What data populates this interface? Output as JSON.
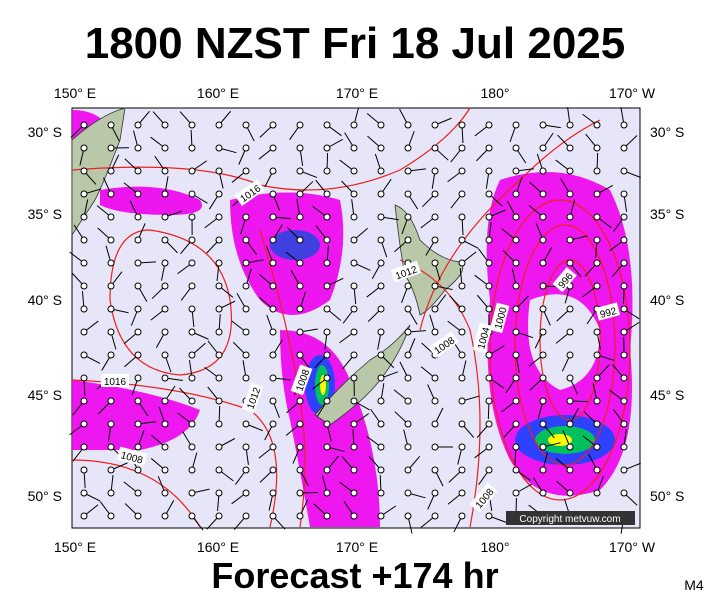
{
  "header": {
    "title": "1800 NZST Fri 18 Jul 2025"
  },
  "map": {
    "lon_labels": [
      "150° E",
      "160° E",
      "170° E",
      "180°",
      "170° W"
    ],
    "lat_labels": [
      "30° S",
      "35° S",
      "40° S",
      "45° S",
      "50° S"
    ],
    "isobar_labels": [
      "1016",
      "1012",
      "1016",
      "1012",
      "1008",
      "1008",
      "1008",
      "1004",
      "1000",
      "996",
      "992",
      "1008"
    ],
    "copyright": "Copyright metvuw.com"
  },
  "footer": {
    "forecast": "Forecast +174 hr",
    "model": "M4"
  }
}
